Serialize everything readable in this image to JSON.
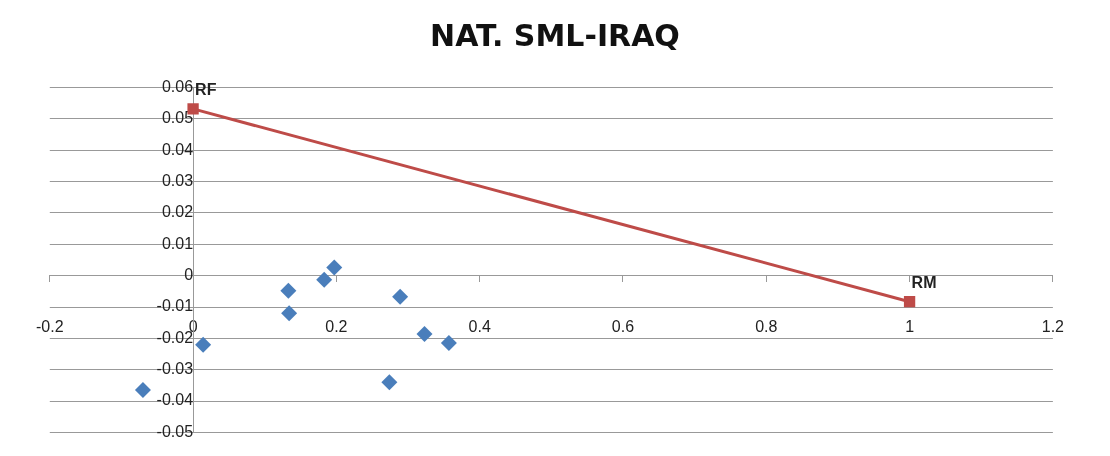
{
  "chart_data": {
    "type": "scatter",
    "title": "NAT. SML-IRAQ",
    "series": [
      {
        "type": "scatter",
        "color": "#4a7ebb",
        "marker": "diamond",
        "x": [
          -0.07,
          0.014,
          0.133,
          0.134,
          0.183,
          0.197,
          0.274,
          0.289,
          0.323,
          0.357
        ],
        "values": [
          -0.0365,
          -0.022,
          -0.0048,
          -0.012,
          -0.0013,
          0.0026,
          -0.034,
          -0.0067,
          -0.0186,
          -0.0215
        ]
      },
      {
        "type": "line",
        "color": "#be4b48",
        "marker": "square",
        "line_style": "solid",
        "x": [
          0,
          1
        ],
        "values": [
          0.0532,
          -0.0083
        ]
      }
    ],
    "annotations": [
      {
        "text": "RF",
        "x": 0,
        "y": 0.0532
      },
      {
        "text": "RM",
        "x": 1,
        "y": -0.0083
      }
    ],
    "xlim": [
      -0.2,
      1.2
    ],
    "xticks": [
      -0.2,
      0,
      0.2,
      0.4,
      0.6,
      0.8,
      1,
      1.2
    ],
    "ylim": [
      -0.05,
      0.06
    ],
    "yticks": [
      -0.05,
      -0.04,
      -0.03,
      -0.02,
      -0.01,
      0,
      0.01,
      0.02,
      0.03,
      0.04,
      0.05,
      0.06
    ],
    "grid": "y",
    "legend": false
  }
}
